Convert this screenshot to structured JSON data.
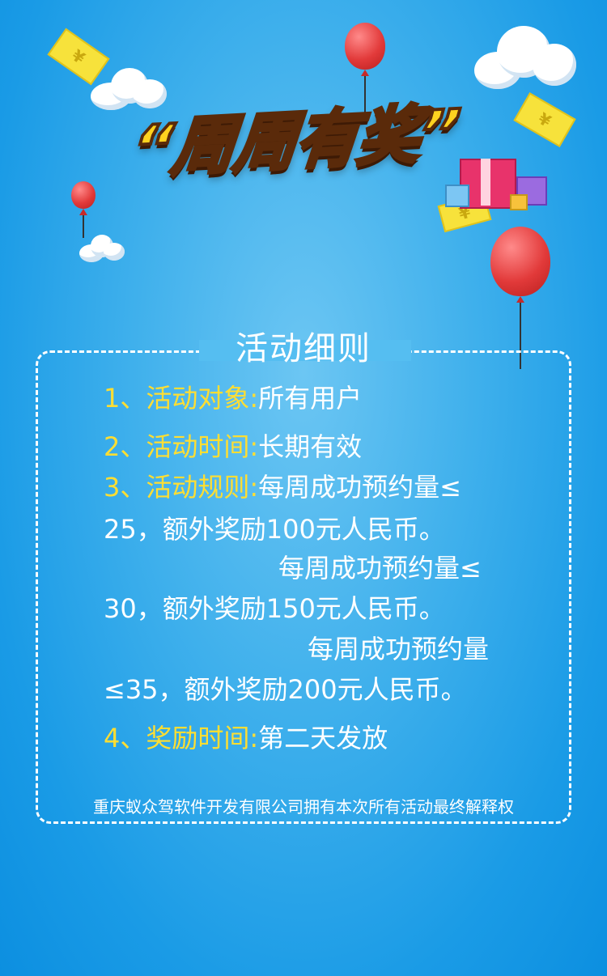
{
  "banner": {
    "title": "“周周有奖”"
  },
  "rules": {
    "heading": "活动细则",
    "items": [
      {
        "num": "1、",
        "label": "活动对象:",
        "value": "所有用户"
      },
      {
        "num": "2、",
        "label": "活动时间:",
        "value": "长期有效"
      },
      {
        "num": "3、",
        "label": "活动规则:",
        "value": "每周成功预约量≤"
      },
      {
        "num": "4、",
        "label": "奖励时间:",
        "value": "第二天发放"
      }
    ],
    "rule3_lines": [
      "25，额外奖励100元人民币。",
      "每周成功预约量≤",
      "30，额外奖励150元人民币。",
      "每周成功预约量",
      "≤35，额外奖励200元人民币。"
    ]
  },
  "footer": {
    "text": "重庆蚁众驾软件开发有限公司拥有本次所有活动最终解释权"
  },
  "icons": [
    "balloon-icon",
    "cloud-icon",
    "money-note-icon",
    "gift-box-icon"
  ],
  "colors": {
    "background": "#3fb0ec",
    "highlight": "#ffde32",
    "title_fill": "#ffd21f",
    "title_stroke": "#5a2a0a",
    "text": "#ffffff"
  }
}
